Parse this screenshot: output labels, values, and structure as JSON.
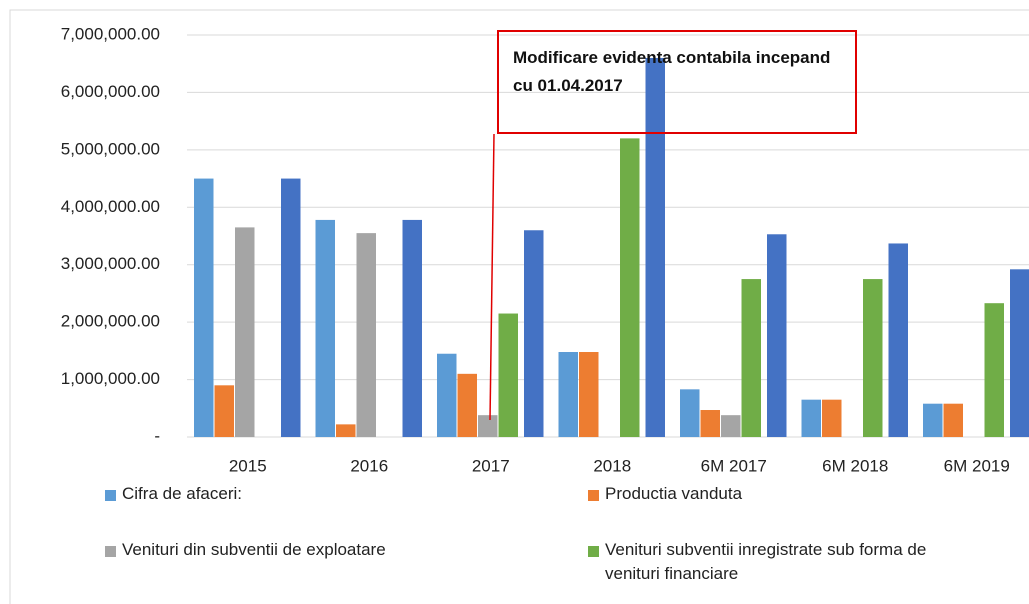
{
  "chart_data": {
    "type": "bar",
    "categories": [
      "2015",
      "2016",
      "2017",
      "2018",
      "6M 2017",
      "6M 2018",
      "6M 2019"
    ],
    "series": [
      {
        "name": "Cifra de afaceri:",
        "color": "#5b9bd5",
        "values": [
          4500000,
          3780000,
          1450000,
          1480000,
          830000,
          650000,
          580000
        ]
      },
      {
        "name": "Productia vanduta",
        "color": "#ed7d31",
        "values": [
          900000,
          220000,
          1100000,
          1480000,
          470000,
          650000,
          580000
        ]
      },
      {
        "name": "Venituri din subventii de exploatare",
        "color": "#a5a5a5",
        "values": [
          3650000,
          3550000,
          380000,
          0,
          380000,
          0,
          0
        ]
      },
      {
        "name": "Venituri subventii inregistrate sub forma de venituri financiare",
        "color": "#70ad47",
        "values": [
          0,
          0,
          2150000,
          5200000,
          2750000,
          2750000,
          2330000
        ]
      },
      {
        "color": "#4472c4",
        "values": [
          4500000,
          3780000,
          3600000,
          6600000,
          3530000,
          3370000,
          2920000
        ]
      }
    ],
    "ylim": [
      0,
      7000000
    ],
    "yticks": [
      {
        "value": 0,
        "label": "-"
      },
      {
        "value": 1000000,
        "label": "1,000,000.00"
      },
      {
        "value": 2000000,
        "label": "2,000,000.00"
      },
      {
        "value": 3000000,
        "label": "3,000,000.00"
      },
      {
        "value": 4000000,
        "label": "4,000,000.00"
      },
      {
        "value": 5000000,
        "label": "5,000,000.00"
      },
      {
        "value": 6000000,
        "label": "6,000,000.00"
      },
      {
        "value": 7000000,
        "label": "7,000,000.00"
      }
    ],
    "grid": true,
    "legend": "bottom",
    "annotation": "Modificare evidenta contabila incepand cu 01.04.2017"
  }
}
